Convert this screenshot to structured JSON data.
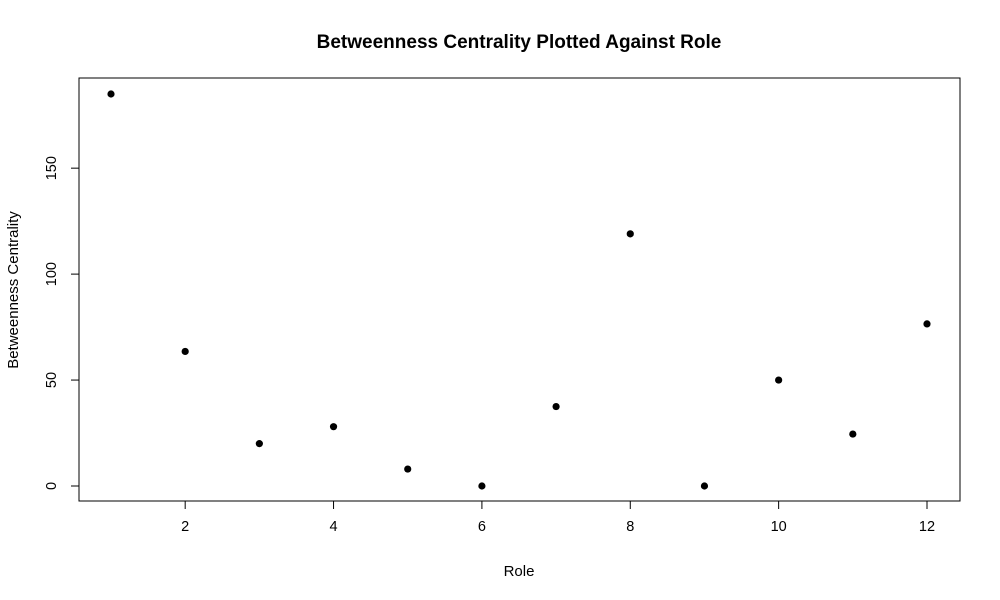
{
  "chart_data": {
    "type": "scatter",
    "title": "Betweenness Centrality Plotted Against Role",
    "xlabel": "Role",
    "ylabel": "Betweenness Centrality",
    "x": [
      1,
      2,
      3,
      4,
      5,
      6,
      7,
      8,
      9,
      10,
      11,
      12
    ],
    "y": [
      185,
      63.5,
      20,
      28,
      8,
      0,
      37.5,
      119,
      0,
      50,
      24.5,
      76.5
    ],
    "xlim": [
      0.55,
      12.45
    ],
    "ylim": [
      -7.4,
      192.4
    ],
    "xticks": [
      2,
      4,
      6,
      8,
      10,
      12
    ],
    "xtick_labels": [
      "2",
      "4",
      "6",
      "8",
      "10",
      "12"
    ],
    "yticks": [
      0,
      50,
      100,
      150
    ],
    "ytick_labels": [
      "0",
      "50",
      "100",
      "150"
    ],
    "grid": false,
    "point_color": "#000000"
  }
}
